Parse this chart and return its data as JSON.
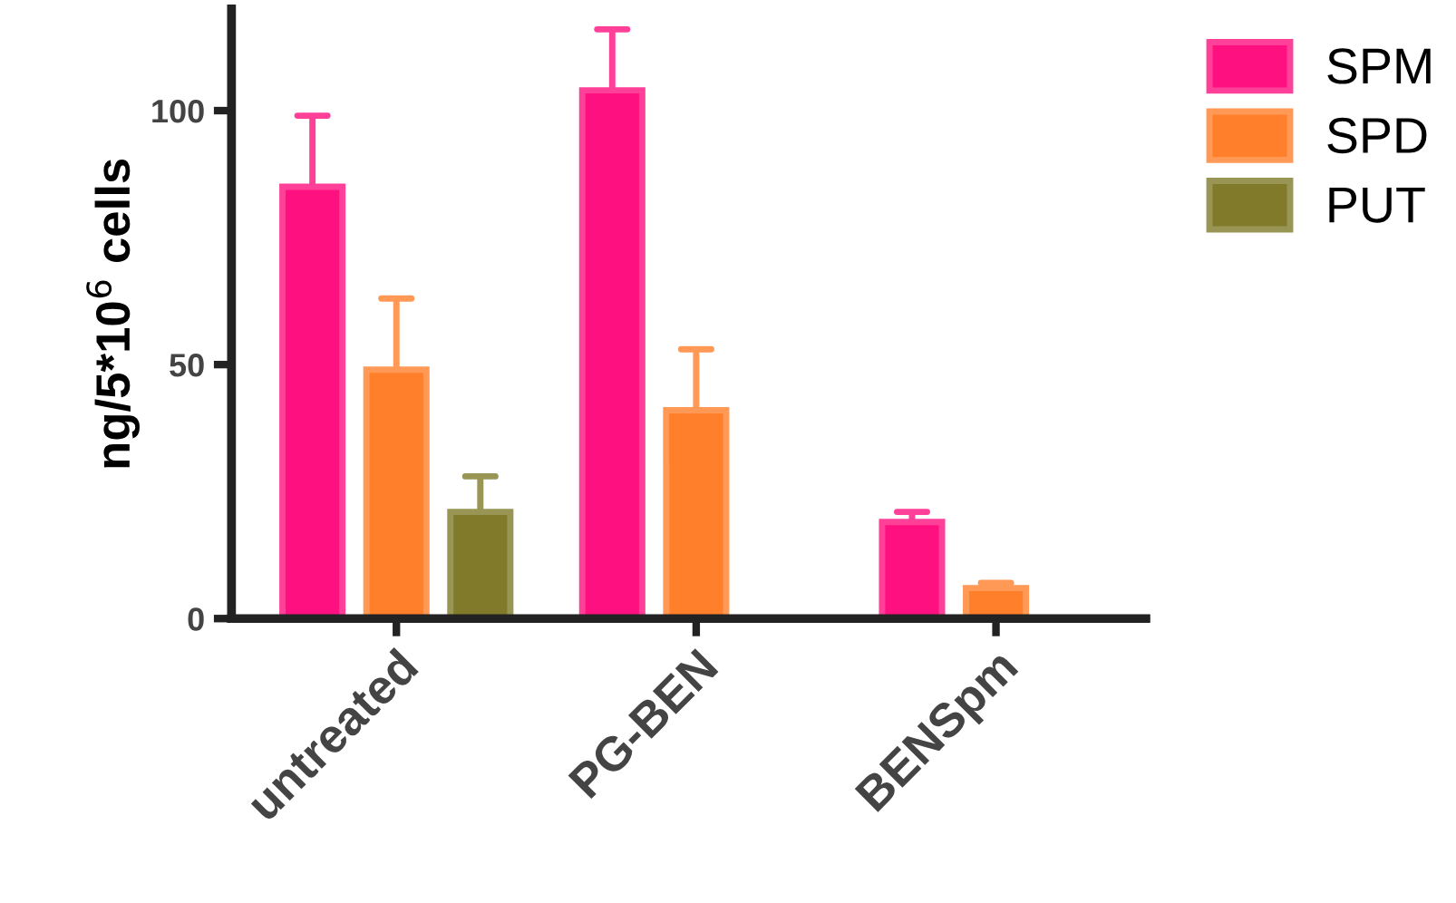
{
  "chart_data": {
    "type": "bar",
    "ylabel": "ng/5*10$^{6}$ cells",
    "categories": [
      "untreated",
      "PG-BEN",
      "BENSpm"
    ],
    "series": [
      {
        "name": "SPM",
        "color": "#ff1080",
        "values": [
          85,
          104,
          19
        ],
        "errors": [
          [
            85,
            99
          ],
          [
            104,
            116
          ],
          [
            19,
            21
          ]
        ]
      },
      {
        "name": "SPD",
        "color": "#ff7f2a",
        "values": [
          49,
          41,
          6
        ],
        "errors": [
          [
            49,
            63
          ],
          [
            41,
            53
          ],
          [
            6,
            7
          ]
        ]
      },
      {
        "name": "PUT",
        "color": "#807a2a",
        "values": [
          21,
          null,
          null
        ],
        "errors": [
          [
            21,
            28
          ],
          null,
          null
        ]
      }
    ],
    "ylim": [
      0,
      120
    ],
    "yticks": [
      0,
      50,
      100
    ],
    "grid": false,
    "legend": "top right"
  }
}
